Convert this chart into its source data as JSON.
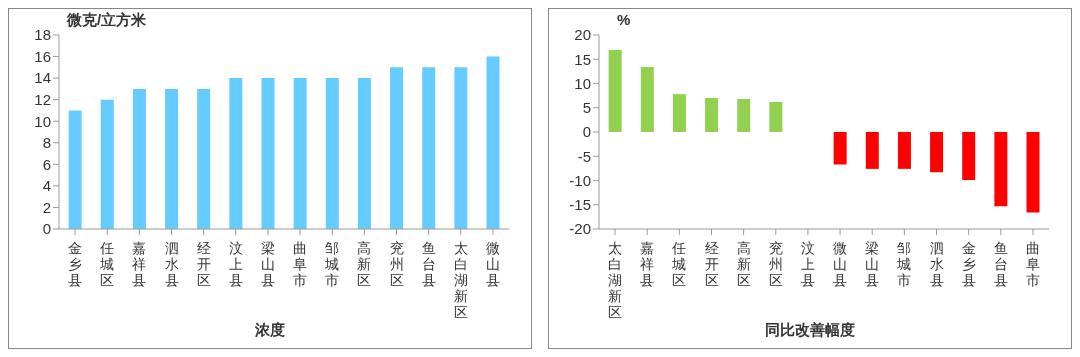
{
  "chart_data": [
    {
      "type": "bar",
      "xlabel": "浓度",
      "ylabel": "微克/立方米",
      "categories": [
        "金乡县",
        "任城区",
        "嘉祥县",
        "泗水县",
        "经开区",
        "汶上县",
        "梁山县",
        "曲阜市",
        "邹城市",
        "高新区",
        "兖州区",
        "鱼台县",
        "太白湖新区",
        "微山县"
      ],
      "values": [
        11,
        12,
        13,
        13,
        13,
        14,
        14,
        14,
        14,
        14,
        15,
        15,
        15,
        16
      ],
      "color": "#66ccff",
      "ylim": [
        0,
        18
      ],
      "yticks": [
        0,
        2,
        4,
        6,
        8,
        10,
        12,
        14,
        16,
        18
      ],
      "grid": false
    },
    {
      "type": "bar",
      "xlabel": "同比改善幅度",
      "ylabel": "%",
      "categories": [
        "太白湖新区",
        "嘉祥县",
        "任城区",
        "经开区",
        "高新区",
        "兖州区",
        "汶上县",
        "微山县",
        "梁山县",
        "邹城市",
        "泗水县",
        "金乡县",
        "鱼台县",
        "曲阜市"
      ],
      "values": [
        16.9,
        13.4,
        7.8,
        7.0,
        6.8,
        6.2,
        0,
        -6.7,
        -7.6,
        -7.6,
        -8.3,
        -9.9,
        -15.3,
        -16.6
      ],
      "colors": [
        "#92d050",
        "#92d050",
        "#92d050",
        "#92d050",
        "#92d050",
        "#92d050",
        "#92d050",
        "#ff0000",
        "#ff0000",
        "#ff0000",
        "#ff0000",
        "#ff0000",
        "#ff0000",
        "#ff0000"
      ],
      "ylim": [
        -20,
        20
      ],
      "yticks": [
        -20,
        -15,
        -10,
        -5,
        0,
        5,
        10,
        15,
        20
      ],
      "grid": false
    }
  ]
}
